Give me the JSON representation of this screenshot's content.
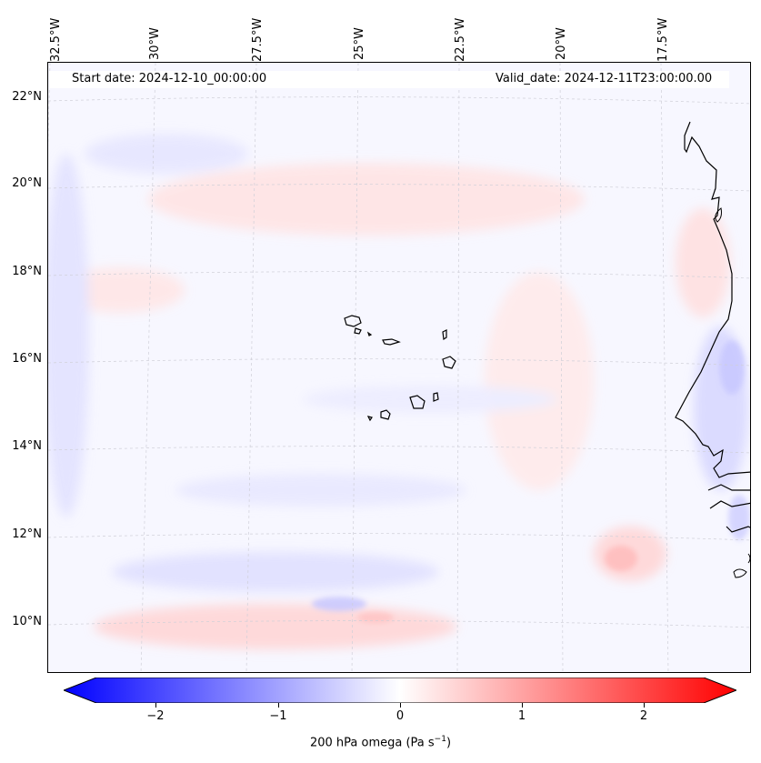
{
  "map": {
    "start_date": "Start date: 2024-12-10_00:00:00",
    "valid_date": "Valid_date: 2024-12-11T23:00:00.00",
    "longitude_labels": [
      "32.5°W",
      "30°W",
      "27.5°W",
      "25°W",
      "22.5°W",
      "20°W",
      "17.5°W"
    ],
    "latitude_labels": [
      "22°N",
      "20°N",
      "18°N",
      "16°N",
      "14°N",
      "12°N",
      "10°N"
    ],
    "field": "200 hPa omega"
  },
  "colorbar": {
    "label_prefix": "200 hPa omega (Pa s",
    "label_sup": "−1",
    "label_suffix": ")",
    "ticks": [
      "−2",
      "−1",
      "0",
      "1",
      "2"
    ],
    "tick_values": [
      -2,
      -1,
      0,
      1,
      2
    ],
    "range": [
      -2.6,
      2.6
    ],
    "min_color": "#0000ff",
    "mid_color": "#ffffff",
    "max_color": "#ff0000"
  },
  "colors": {
    "coast": "#000000",
    "grid": "#c8c8c8",
    "positive_shade": "#ffcccc",
    "negative_shade": "#ccccff"
  }
}
